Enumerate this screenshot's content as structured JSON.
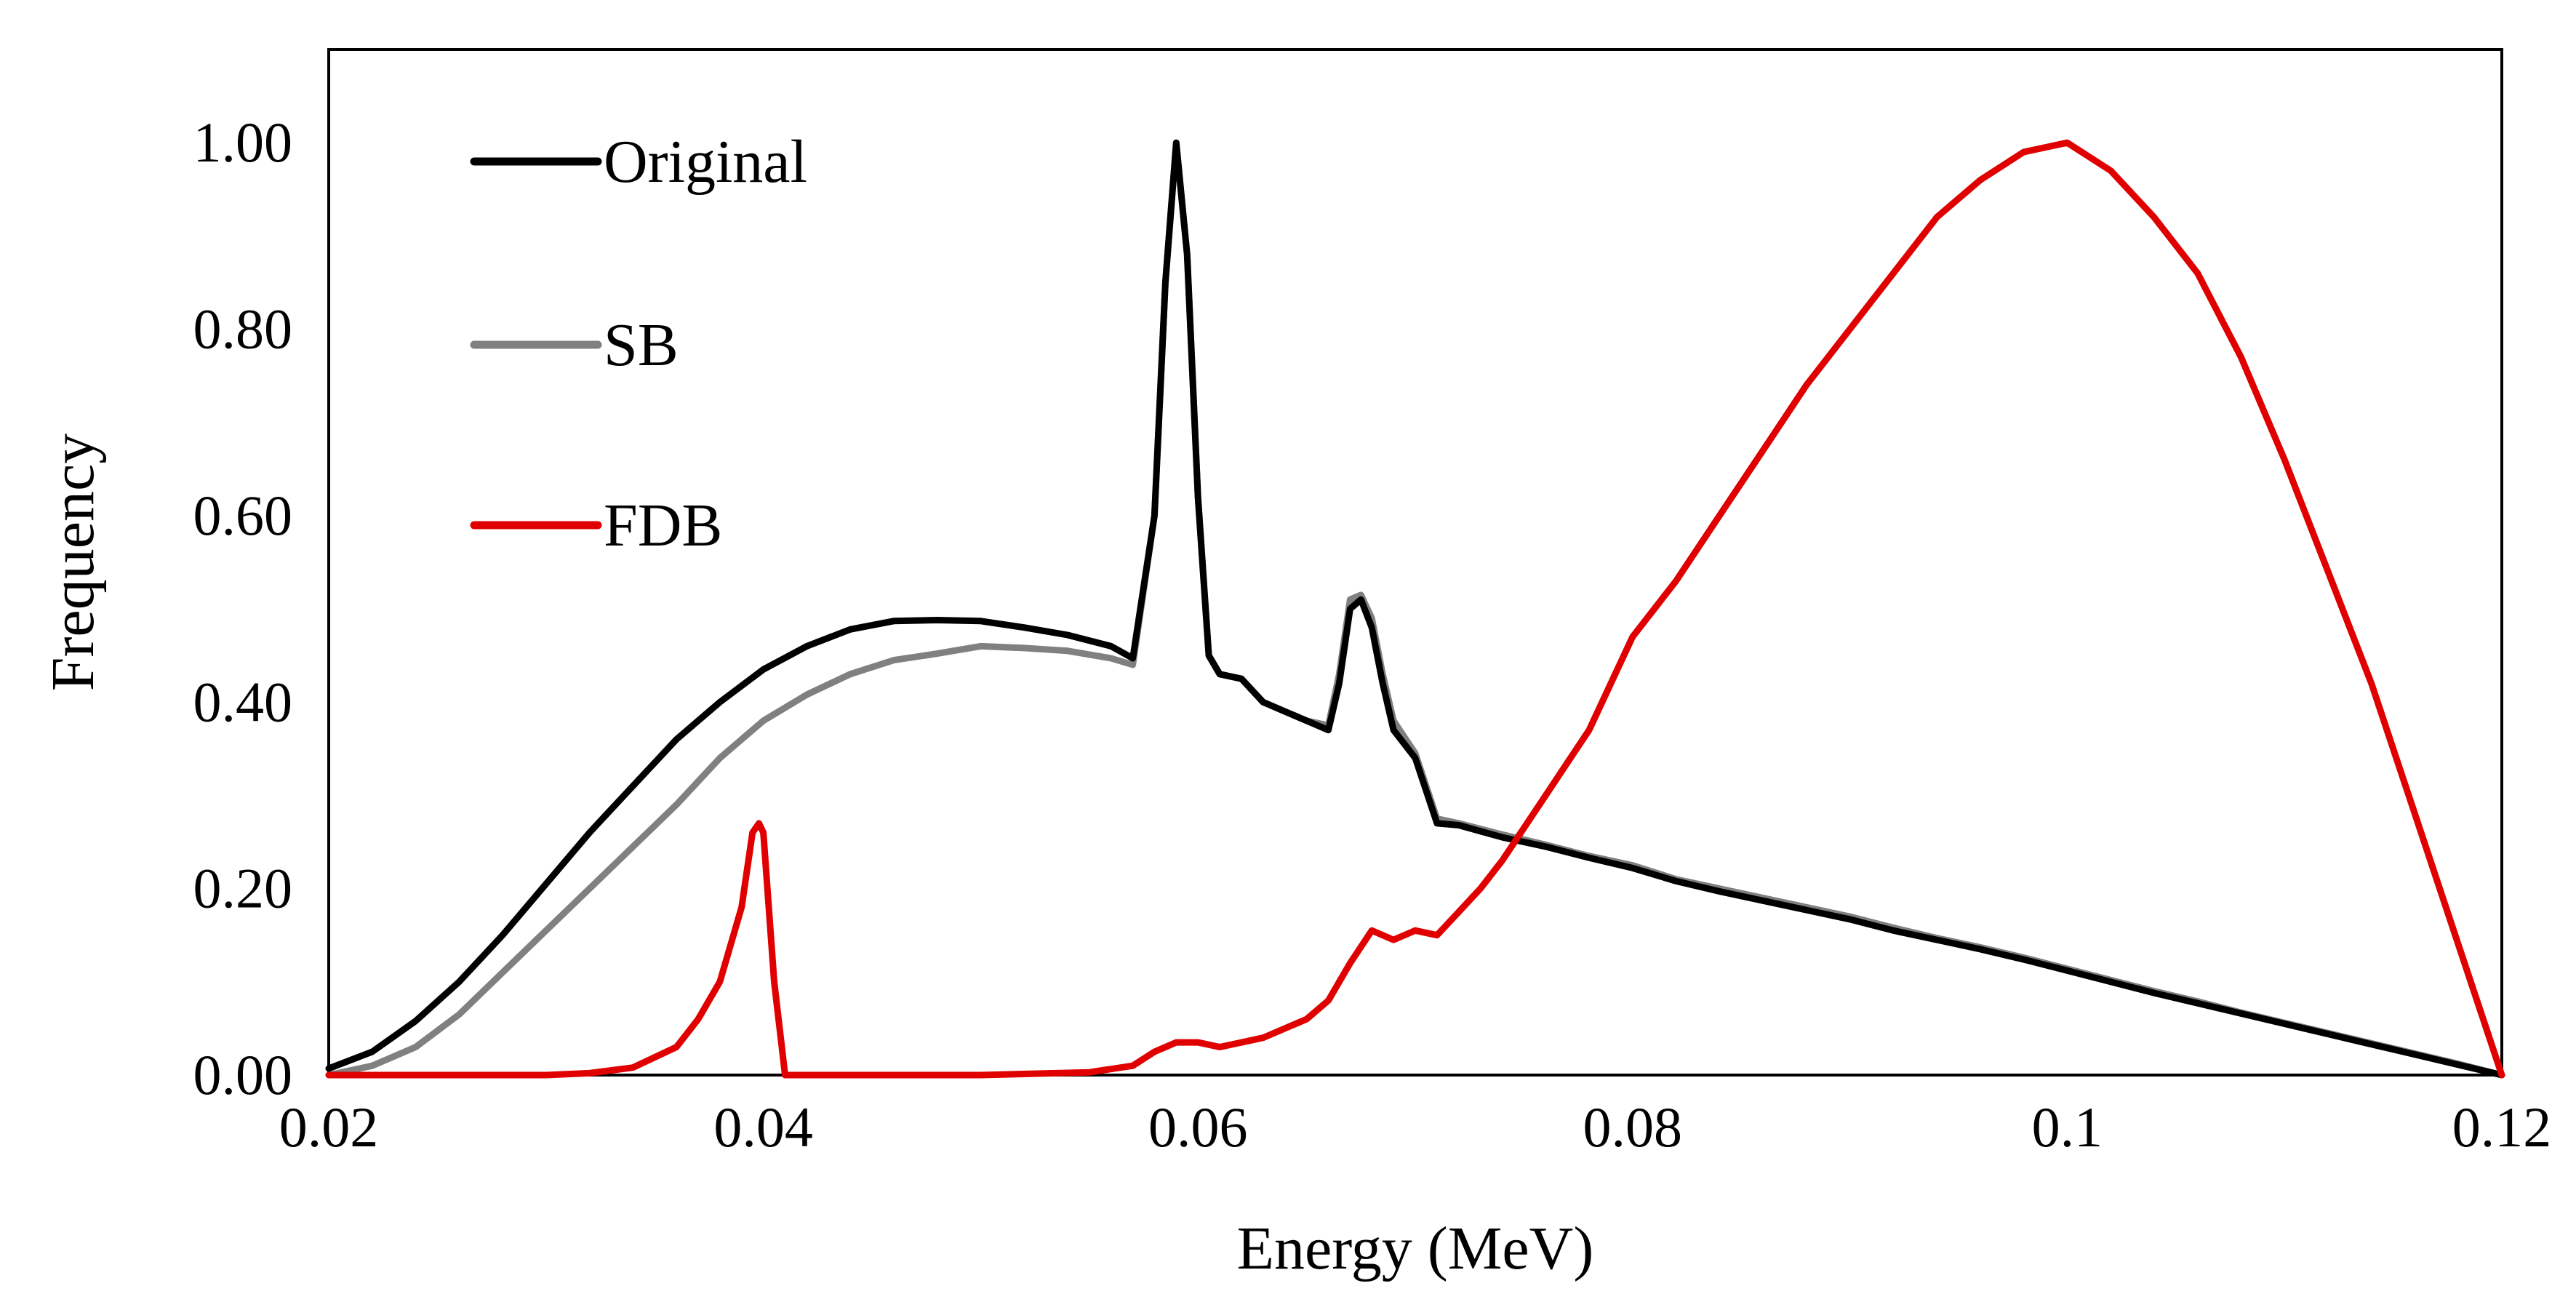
{
  "chart_data": {
    "type": "line",
    "title": "",
    "xlabel": "Energy (MeV)",
    "ylabel": "Frequency",
    "xlim": [
      0.02,
      0.12
    ],
    "ylim": [
      0,
      1.1
    ],
    "x_ticks": [
      0.02,
      0.04,
      0.06,
      0.08,
      0.1,
      0.12
    ],
    "x_tick_labels": [
      "0.02",
      "0.04",
      "0.06",
      "0.08",
      "0.1",
      "0.12"
    ],
    "y_ticks": [
      0,
      0.2,
      0.4,
      0.6,
      0.8,
      1.0
    ],
    "y_tick_labels": [
      "0.00",
      "0.20",
      "0.40",
      "0.60",
      "0.80",
      "1.00"
    ],
    "grid": false,
    "legend_position": "top-left",
    "series": [
      {
        "name": "Original",
        "color": "#000000",
        "points": [
          [
            0.02,
            0.007
          ],
          [
            0.022,
            0.025
          ],
          [
            0.024,
            0.058
          ],
          [
            0.026,
            0.1
          ],
          [
            0.028,
            0.15
          ],
          [
            0.03,
            0.205
          ],
          [
            0.032,
            0.26
          ],
          [
            0.034,
            0.31
          ],
          [
            0.036,
            0.36
          ],
          [
            0.038,
            0.4
          ],
          [
            0.04,
            0.435
          ],
          [
            0.042,
            0.46
          ],
          [
            0.044,
            0.478
          ],
          [
            0.046,
            0.487
          ],
          [
            0.048,
            0.488
          ],
          [
            0.05,
            0.487
          ],
          [
            0.052,
            0.48
          ],
          [
            0.054,
            0.472
          ],
          [
            0.056,
            0.46
          ],
          [
            0.057,
            0.447
          ],
          [
            0.058,
            0.6
          ],
          [
            0.0585,
            0.85
          ],
          [
            0.059,
            1.0
          ],
          [
            0.0595,
            0.88
          ],
          [
            0.06,
            0.62
          ],
          [
            0.0605,
            0.45
          ],
          [
            0.061,
            0.43
          ],
          [
            0.062,
            0.425
          ],
          [
            0.063,
            0.4
          ],
          [
            0.064,
            0.39
          ],
          [
            0.065,
            0.38
          ],
          [
            0.066,
            0.37
          ],
          [
            0.0665,
            0.42
          ],
          [
            0.067,
            0.5
          ],
          [
            0.0675,
            0.51
          ],
          [
            0.068,
            0.48
          ],
          [
            0.0685,
            0.42
          ],
          [
            0.069,
            0.37
          ],
          [
            0.07,
            0.34
          ],
          [
            0.071,
            0.27
          ],
          [
            0.072,
            0.268
          ],
          [
            0.074,
            0.255
          ],
          [
            0.076,
            0.245
          ],
          [
            0.078,
            0.233
          ],
          [
            0.08,
            0.222
          ],
          [
            0.082,
            0.208
          ],
          [
            0.084,
            0.197
          ],
          [
            0.086,
            0.187
          ],
          [
            0.088,
            0.177
          ],
          [
            0.09,
            0.167
          ],
          [
            0.092,
            0.155
          ],
          [
            0.094,
            0.145
          ],
          [
            0.096,
            0.135
          ],
          [
            0.098,
            0.124
          ],
          [
            0.1,
            0.112
          ],
          [
            0.102,
            0.1
          ],
          [
            0.104,
            0.088
          ],
          [
            0.106,
            0.077
          ],
          [
            0.108,
            0.066
          ],
          [
            0.11,
            0.055
          ],
          [
            0.112,
            0.044
          ],
          [
            0.114,
            0.033
          ],
          [
            0.116,
            0.022
          ],
          [
            0.118,
            0.011
          ],
          [
            0.12,
            0.0
          ]
        ]
      },
      {
        "name": "SB",
        "color": "#808080",
        "points": [
          [
            0.02,
            0.0
          ],
          [
            0.022,
            0.01
          ],
          [
            0.024,
            0.03
          ],
          [
            0.026,
            0.065
          ],
          [
            0.028,
            0.11
          ],
          [
            0.03,
            0.155
          ],
          [
            0.032,
            0.2
          ],
          [
            0.034,
            0.245
          ],
          [
            0.036,
            0.29
          ],
          [
            0.038,
            0.34
          ],
          [
            0.04,
            0.38
          ],
          [
            0.042,
            0.408
          ],
          [
            0.044,
            0.43
          ],
          [
            0.046,
            0.445
          ],
          [
            0.048,
            0.452
          ],
          [
            0.05,
            0.46
          ],
          [
            0.052,
            0.458
          ],
          [
            0.054,
            0.455
          ],
          [
            0.056,
            0.447
          ],
          [
            0.057,
            0.44
          ],
          [
            0.058,
            0.6
          ],
          [
            0.0585,
            0.85
          ],
          [
            0.059,
            1.0
          ],
          [
            0.0595,
            0.88
          ],
          [
            0.06,
            0.62
          ],
          [
            0.0605,
            0.45
          ],
          [
            0.061,
            0.43
          ],
          [
            0.062,
            0.425
          ],
          [
            0.063,
            0.4
          ],
          [
            0.064,
            0.39
          ],
          [
            0.065,
            0.38
          ],
          [
            0.066,
            0.375
          ],
          [
            0.0665,
            0.43
          ],
          [
            0.067,
            0.51
          ],
          [
            0.0675,
            0.515
          ],
          [
            0.068,
            0.49
          ],
          [
            0.0685,
            0.43
          ],
          [
            0.069,
            0.38
          ],
          [
            0.07,
            0.345
          ],
          [
            0.071,
            0.275
          ],
          [
            0.072,
            0.27
          ],
          [
            0.074,
            0.258
          ],
          [
            0.076,
            0.247
          ],
          [
            0.078,
            0.235
          ],
          [
            0.08,
            0.225
          ],
          [
            0.082,
            0.21
          ],
          [
            0.084,
            0.2
          ],
          [
            0.086,
            0.19
          ],
          [
            0.088,
            0.18
          ],
          [
            0.09,
            0.17
          ],
          [
            0.092,
            0.158
          ],
          [
            0.094,
            0.147
          ],
          [
            0.096,
            0.137
          ],
          [
            0.098,
            0.126
          ],
          [
            0.1,
            0.114
          ],
          [
            0.102,
            0.102
          ],
          [
            0.104,
            0.09
          ],
          [
            0.106,
            0.079
          ],
          [
            0.108,
            0.067
          ],
          [
            0.11,
            0.056
          ],
          [
            0.112,
            0.045
          ],
          [
            0.114,
            0.034
          ],
          [
            0.116,
            0.023
          ],
          [
            0.118,
            0.012
          ],
          [
            0.12,
            0.0
          ]
        ]
      },
      {
        "name": "FDB",
        "color": "#e00000",
        "points": [
          [
            0.02,
            0.0
          ],
          [
            0.03,
            0.0
          ],
          [
            0.032,
            0.002
          ],
          [
            0.034,
            0.008
          ],
          [
            0.036,
            0.03
          ],
          [
            0.037,
            0.06
          ],
          [
            0.038,
            0.1
          ],
          [
            0.039,
            0.18
          ],
          [
            0.0395,
            0.26
          ],
          [
            0.0398,
            0.27
          ],
          [
            0.04,
            0.26
          ],
          [
            0.0405,
            0.1
          ],
          [
            0.041,
            0.0
          ],
          [
            0.045,
            0.0
          ],
          [
            0.05,
            0.0
          ],
          [
            0.055,
            0.003
          ],
          [
            0.057,
            0.01
          ],
          [
            0.058,
            0.025
          ],
          [
            0.059,
            0.035
          ],
          [
            0.06,
            0.035
          ],
          [
            0.061,
            0.03
          ],
          [
            0.062,
            0.035
          ],
          [
            0.063,
            0.04
          ],
          [
            0.064,
            0.05
          ],
          [
            0.065,
            0.06
          ],
          [
            0.066,
            0.08
          ],
          [
            0.067,
            0.12
          ],
          [
            0.068,
            0.155
          ],
          [
            0.069,
            0.145
          ],
          [
            0.07,
            0.155
          ],
          [
            0.071,
            0.15
          ],
          [
            0.072,
            0.175
          ],
          [
            0.073,
            0.2
          ],
          [
            0.074,
            0.23
          ],
          [
            0.076,
            0.3
          ],
          [
            0.078,
            0.37
          ],
          [
            0.08,
            0.47
          ],
          [
            0.082,
            0.53
          ],
          [
            0.084,
            0.6
          ],
          [
            0.086,
            0.67
          ],
          [
            0.088,
            0.74
          ],
          [
            0.09,
            0.8
          ],
          [
            0.092,
            0.86
          ],
          [
            0.094,
            0.92
          ],
          [
            0.096,
            0.96
          ],
          [
            0.098,
            0.99
          ],
          [
            0.1,
            1.0
          ],
          [
            0.102,
            0.97
          ],
          [
            0.104,
            0.92
          ],
          [
            0.106,
            0.86
          ],
          [
            0.108,
            0.77
          ],
          [
            0.11,
            0.66
          ],
          [
            0.112,
            0.54
          ],
          [
            0.114,
            0.42
          ],
          [
            0.116,
            0.28
          ],
          [
            0.118,
            0.14
          ],
          [
            0.12,
            0.0
          ]
        ]
      }
    ]
  }
}
